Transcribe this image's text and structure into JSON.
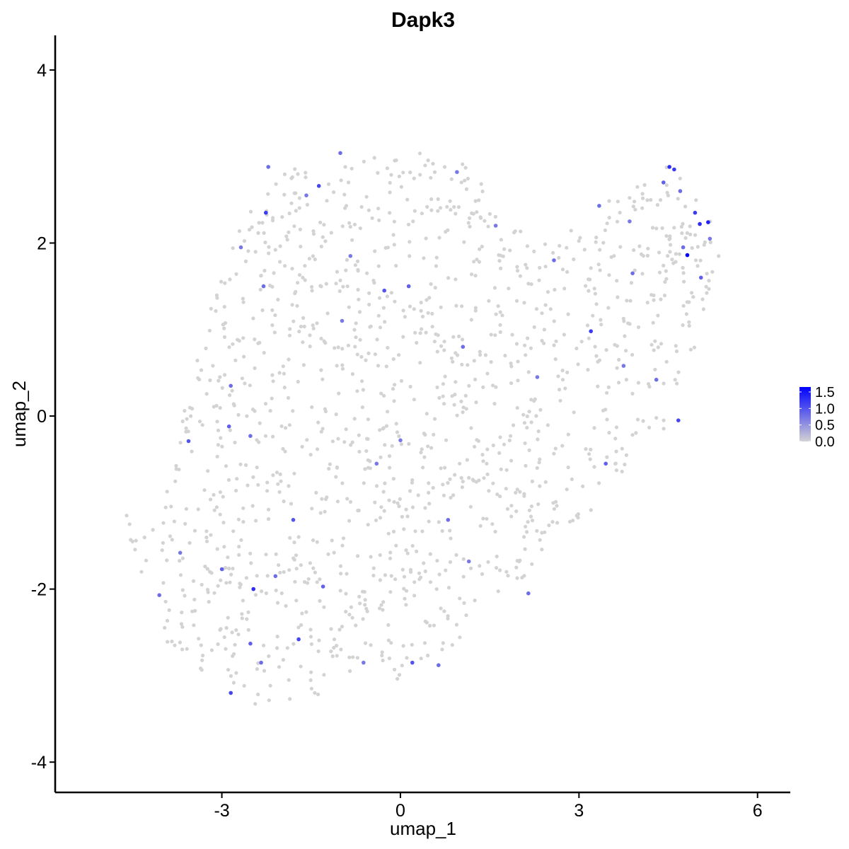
{
  "chart_data": {
    "type": "scatter",
    "title": "Dapk3",
    "xlabel": "umap_1",
    "ylabel": "umap_2",
    "xlim": [
      -5.8,
      6.55
    ],
    "ylim": [
      -4.35,
      4.4
    ],
    "x_ticks": [
      -3,
      0,
      3,
      6
    ],
    "y_ticks": [
      -4,
      -2,
      0,
      2,
      4
    ],
    "x_tick_labels": [
      "-3",
      "0",
      "3",
      "6"
    ],
    "y_tick_labels": [
      "-4",
      "-2",
      "0",
      "2",
      "4"
    ],
    "grid": false,
    "legend": {
      "placement": "right",
      "type": "colorbar",
      "min": 0.0,
      "max": 1.65,
      "tick_values": [
        0.0,
        0.5,
        1.0,
        1.5
      ],
      "tick_labels": [
        "0.0",
        "0.5",
        "1.0",
        "1.5"
      ],
      "low_color": "#d3d3d3",
      "high_color": "#0000ff"
    },
    "points": [
      {
        "x": 4.82,
        "y": 1.86,
        "v": 1.65
      },
      {
        "x": 5.17,
        "y": 2.24,
        "v": 1.4
      },
      {
        "x": 5.03,
        "y": 2.22,
        "v": 1.3
      },
      {
        "x": 4.95,
        "y": 2.35,
        "v": 1.2
      },
      {
        "x": 4.52,
        "y": 2.88,
        "v": 1.3
      },
      {
        "x": 4.6,
        "y": 2.85,
        "v": 1.2
      },
      {
        "x": 4.42,
        "y": 2.7,
        "v": 0.9
      },
      {
        "x": 4.7,
        "y": 2.6,
        "v": 0.8
      },
      {
        "x": 4.75,
        "y": 1.95,
        "v": 0.8
      },
      {
        "x": 5.2,
        "y": 2.05,
        "v": 0.7
      },
      {
        "x": 5.05,
        "y": 1.6,
        "v": 0.9
      },
      {
        "x": 3.2,
        "y": 0.98,
        "v": 1.2
      },
      {
        "x": 3.45,
        "y": -0.55,
        "v": 0.9
      },
      {
        "x": 4.67,
        "y": -0.05,
        "v": 1.1
      },
      {
        "x": 4.3,
        "y": 0.42,
        "v": 0.8
      },
      {
        "x": 2.15,
        "y": -2.05,
        "v": 0.8
      },
      {
        "x": 1.6,
        "y": 2.2,
        "v": 0.7
      },
      {
        "x": -1.37,
        "y": 2.66,
        "v": 1.1
      },
      {
        "x": -1.01,
        "y": 3.04,
        "v": 0.8
      },
      {
        "x": -2.26,
        "y": 2.35,
        "v": 1.2
      },
      {
        "x": -2.22,
        "y": 2.88,
        "v": 0.8
      },
      {
        "x": -2.68,
        "y": 1.95,
        "v": 0.7
      },
      {
        "x": -2.3,
        "y": 1.5,
        "v": 0.8
      },
      {
        "x": -0.27,
        "y": 1.45,
        "v": 1.0
      },
      {
        "x": 0.14,
        "y": 1.5,
        "v": 0.9
      },
      {
        "x": -0.98,
        "y": 1.1,
        "v": 0.7
      },
      {
        "x": -2.85,
        "y": 0.35,
        "v": 0.8
      },
      {
        "x": -3.56,
        "y": -0.29,
        "v": 1.0
      },
      {
        "x": -2.88,
        "y": -0.12,
        "v": 0.9
      },
      {
        "x": -2.52,
        "y": -0.23,
        "v": 0.8
      },
      {
        "x": -2.47,
        "y": -2.0,
        "v": 1.3
      },
      {
        "x": -2.52,
        "y": -2.63,
        "v": 0.9
      },
      {
        "x": -2.85,
        "y": -3.2,
        "v": 1.1
      },
      {
        "x": -2.34,
        "y": -2.85,
        "v": 0.8
      },
      {
        "x": -1.71,
        "y": -2.58,
        "v": 1.1
      },
      {
        "x": -1.8,
        "y": -1.2,
        "v": 1.0
      },
      {
        "x": -1.3,
        "y": -1.97,
        "v": 0.9
      },
      {
        "x": -0.62,
        "y": -2.85,
        "v": 0.7
      },
      {
        "x": 0.2,
        "y": -2.85,
        "v": 1.0
      },
      {
        "x": 0.64,
        "y": -2.88,
        "v": 0.8
      },
      {
        "x": 1.15,
        "y": -1.68,
        "v": 0.7
      },
      {
        "x": 0.8,
        "y": -1.2,
        "v": 0.8
      },
      {
        "x": -4.05,
        "y": -2.07,
        "v": 0.8
      },
      {
        "x": -3.7,
        "y": -1.58,
        "v": 0.7
      },
      {
        "x": -3.0,
        "y": -1.77,
        "v": 0.9
      },
      {
        "x": -2.1,
        "y": -1.85,
        "v": 0.8
      },
      {
        "x": -0.4,
        "y": -0.55,
        "v": 0.7
      },
      {
        "x": 0.0,
        "y": -0.28,
        "v": 0.7
      },
      {
        "x": 2.58,
        "y": 1.8,
        "v": 0.8
      },
      {
        "x": 3.34,
        "y": 2.43,
        "v": 0.8
      },
      {
        "x": 3.9,
        "y": 1.65,
        "v": 0.8
      },
      {
        "x": 3.75,
        "y": 0.58,
        "v": 0.7
      },
      {
        "x": 2.3,
        "y": 0.45,
        "v": 0.7
      },
      {
        "x": 1.05,
        "y": 0.8,
        "v": 0.8
      },
      {
        "x": -0.84,
        "y": 1.85,
        "v": 0.7
      },
      {
        "x": -1.58,
        "y": 2.55,
        "v": 0.7
      },
      {
        "x": 0.95,
        "y": 2.82,
        "v": 0.7
      },
      {
        "x": 3.85,
        "y": 2.25,
        "v": 0.7
      }
    ],
    "background_color": "#d3d3d3"
  }
}
